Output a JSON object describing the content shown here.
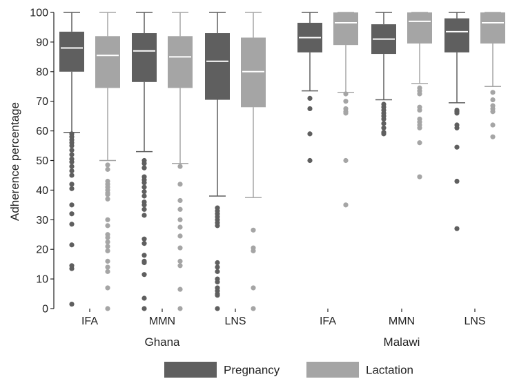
{
  "chart_data": {
    "type": "box",
    "ylabel": "Adherence percentage",
    "ylim": [
      0,
      100
    ],
    "yticks": [
      0,
      10,
      20,
      30,
      40,
      50,
      60,
      70,
      80,
      90,
      100
    ],
    "grid": false,
    "legend_position": "bottom",
    "colors": {
      "Pregnancy": "#5f5f5f",
      "Lactation": "#a5a5a5",
      "median_line": "#ffffff"
    },
    "countries": [
      {
        "name": "Ghana",
        "categories": [
          "IFA",
          "MMN",
          "LNS"
        ]
      },
      {
        "name": "Malawi",
        "categories": [
          "IFA",
          "MMN",
          "LNS"
        ]
      }
    ],
    "series": [
      {
        "name": "Pregnancy",
        "boxes": [
          {
            "country": "Ghana",
            "category": "IFA",
            "whisker_low": 59.5,
            "q1": 80,
            "median": 88,
            "q3": 93.5,
            "whisker_high": 100,
            "outliers": [
              59,
              58,
              57,
              56,
              55,
              53.5,
              52,
              50.5,
              49.5,
              48,
              46.5,
              45,
              42,
              40.5,
              35,
              32,
              28.5,
              21.5,
              14.5,
              13.5,
              1.5
            ]
          },
          {
            "country": "Ghana",
            "category": "MMN",
            "whisker_low": 53,
            "q1": 76.5,
            "median": 87,
            "q3": 93,
            "whisker_high": 100,
            "outliers": [
              50,
              49,
              47.5,
              44.5,
              43.5,
              42.5,
              41,
              39.5,
              38,
              36,
              35,
              33.5,
              31.5,
              23.5,
              22,
              18,
              16,
              15.5,
              11.5,
              3.5,
              0
            ]
          },
          {
            "country": "Ghana",
            "category": "LNS",
            "whisker_low": 38,
            "q1": 70.5,
            "median": 83.5,
            "q3": 93,
            "whisker_high": 100,
            "outliers": [
              34,
              33,
              32,
              31,
              30,
              29,
              28,
              15.5,
              14,
              12.5,
              10,
              9,
              7,
              6,
              5,
              4.5,
              0
            ]
          },
          {
            "country": "Malawi",
            "category": "IFA",
            "whisker_low": 73.5,
            "q1": 86.5,
            "median": 91.5,
            "q3": 96.5,
            "whisker_high": 100,
            "outliers": [
              71,
              67.5,
              59,
              50
            ]
          },
          {
            "country": "Malawi",
            "category": "MMN",
            "whisker_low": 70.5,
            "q1": 86,
            "median": 91,
            "q3": 96,
            "whisker_high": 100,
            "outliers": [
              69,
              68,
              67,
              66,
              65,
              64,
              62.5,
              61,
              59.5,
              59
            ]
          },
          {
            "country": "Malawi",
            "category": "LNS",
            "whisker_low": 69.5,
            "q1": 86.5,
            "median": 93.5,
            "q3": 98,
            "whisker_high": 100,
            "outliers": [
              67,
              66.5,
              66,
              62,
              61,
              54.5,
              43,
              27
            ]
          }
        ]
      },
      {
        "name": "Lactation",
        "boxes": [
          {
            "country": "Ghana",
            "category": "IFA",
            "whisker_low": 50,
            "q1": 74.5,
            "median": 85.5,
            "q3": 92,
            "whisker_high": 100,
            "outliers": [
              48.5,
              47,
              43,
              42,
              41,
              40,
              39,
              38.5,
              37,
              30,
              28,
              25,
              24,
              22.5,
              21,
              19.5,
              16,
              14,
              12.5,
              7,
              0
            ]
          },
          {
            "country": "Ghana",
            "category": "MMN",
            "whisker_low": 49,
            "q1": 74.5,
            "median": 85,
            "q3": 92,
            "whisker_high": 100,
            "outliers": [
              48,
              42,
              36.5,
              33.5,
              30,
              27.5,
              24.5,
              20.5,
              16,
              14.5,
              6.5,
              0
            ]
          },
          {
            "country": "Ghana",
            "category": "LNS",
            "whisker_low": 37.5,
            "q1": 68,
            "median": 80,
            "q3": 91.5,
            "whisker_high": 100,
            "outliers": [
              26.5,
              20.5,
              19.5,
              7,
              0
            ]
          },
          {
            "country": "Malawi",
            "category": "IFA",
            "whisker_low": 73,
            "q1": 89,
            "median": 96.5,
            "q3": 100,
            "whisker_high": 100,
            "outliers": [
              72.5,
              70,
              67.5,
              66.5,
              66,
              50,
              35
            ]
          },
          {
            "country": "Malawi",
            "category": "MMN",
            "whisker_low": 76,
            "q1": 89.5,
            "median": 97,
            "q3": 100,
            "whisker_high": 100,
            "outliers": [
              74.5,
              73.5,
              72.5,
              68,
              67,
              64,
              63,
              62,
              61,
              56,
              44.5
            ]
          },
          {
            "country": "Malawi",
            "category": "LNS",
            "whisker_low": 75,
            "q1": 89.5,
            "median": 96.5,
            "q3": 100,
            "whisker_high": 100,
            "outliers": [
              73,
              70.5,
              68.5,
              67.5,
              66.5,
              62,
              58
            ]
          }
        ]
      }
    ]
  }
}
